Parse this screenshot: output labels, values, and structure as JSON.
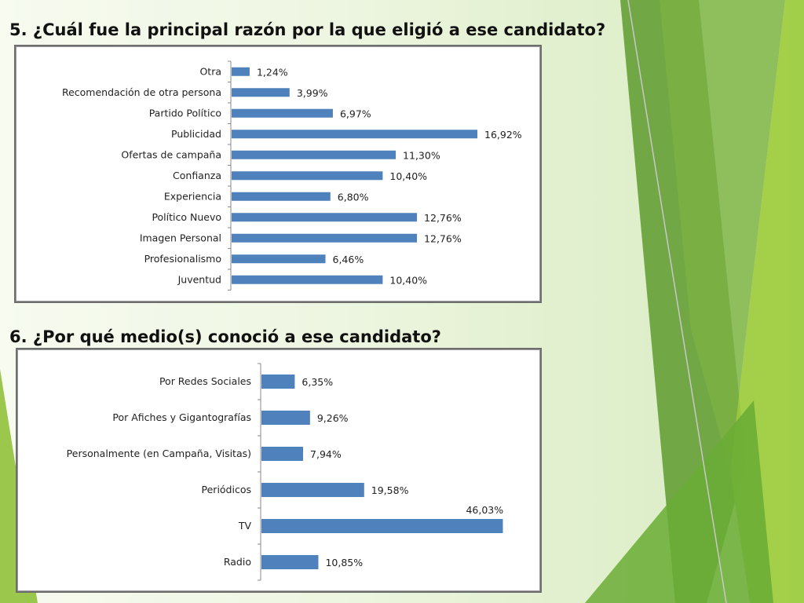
{
  "slide": {
    "q5_title": "5. ¿Cuál fue la principal razón por la que eligió a ese candidato?",
    "q6_title": "6. ¿Por qué medio(s) conoció a ese candidato?"
  },
  "colors": {
    "bar": "#4f81bd",
    "deco_dark": "#5f9a2f",
    "deco_mid": "#7cb342",
    "deco_light": "#9ccc3c"
  },
  "chart_data": [
    {
      "type": "bar",
      "orientation": "horizontal",
      "categories": [
        "Otra",
        "Recomendación de otra persona",
        "Partido Político",
        "Publicidad",
        "Ofertas de campaña",
        "Confianza",
        "Experiencia",
        "Político Nuevo",
        "Imagen Personal",
        "Profesionalismo",
        "Juventud"
      ],
      "values": [
        1.24,
        3.99,
        6.97,
        16.92,
        11.3,
        10.4,
        6.8,
        12.76,
        12.76,
        6.46,
        10.4
      ],
      "value_labels": [
        "1,24%",
        "3,99%",
        "6,97%",
        "16,92%",
        "11,30%",
        "10,40%",
        "6,80%",
        "12,76%",
        "12,76%",
        "6,46%",
        "10,40%"
      ],
      "xlim": [
        0,
        18
      ],
      "grid": false,
      "legend": "none"
    },
    {
      "type": "bar",
      "orientation": "horizontal",
      "categories": [
        "Por Redes Sociales",
        "Por Afiches y Gigantografías",
        "Personalmente (en Campaña, Visitas)",
        "Periódicos",
        "TV",
        "Radio"
      ],
      "values": [
        6.35,
        9.26,
        7.94,
        19.58,
        46.03,
        10.85
      ],
      "value_labels": [
        "6,35%",
        "9,26%",
        "7,94%",
        "19,58%",
        "46,03%",
        "10,85%"
      ],
      "xlim": [
        0,
        50
      ],
      "grid": false,
      "legend": "none"
    }
  ]
}
